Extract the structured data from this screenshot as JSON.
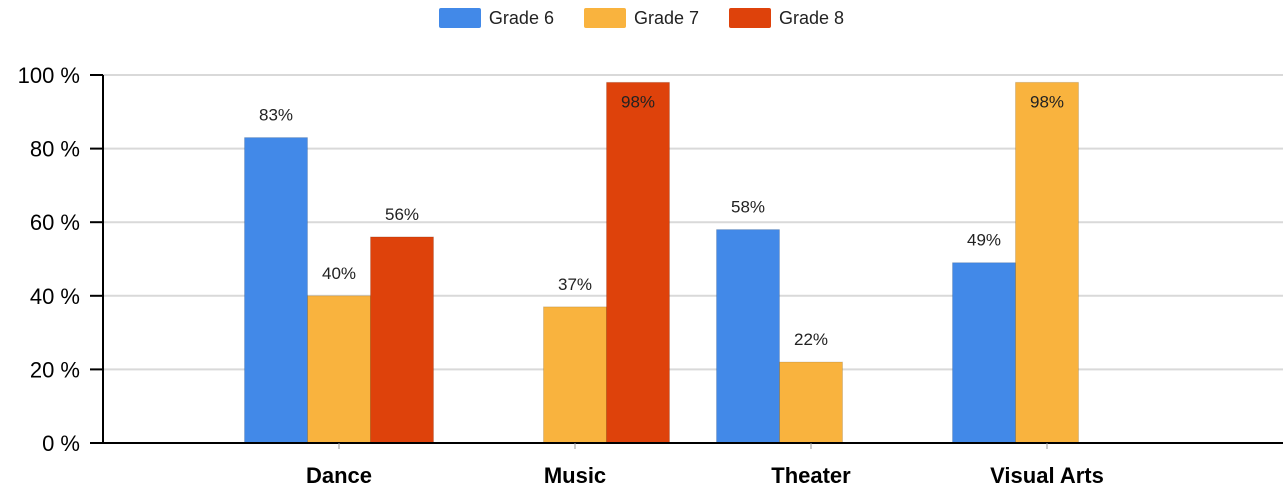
{
  "chart_data": {
    "type": "bar",
    "categories": [
      "Dance",
      "Music",
      "Theater",
      "Visual Arts"
    ],
    "series": [
      {
        "name": "Grade 6",
        "color": "#4289E8",
        "values": [
          83,
          null,
          58,
          49
        ]
      },
      {
        "name": "Grade 7",
        "color": "#F9B33E",
        "values": [
          40,
          37,
          22,
          98
        ]
      },
      {
        "name": "Grade 8",
        "color": "#DE420B",
        "values": [
          56,
          98,
          null,
          null
        ]
      }
    ],
    "data_labels": [
      [
        "83%",
        null,
        "58%",
        "49%"
      ],
      [
        "40%",
        "37%",
        "22%",
        "98%"
      ],
      [
        "56%",
        "98%",
        null,
        null
      ]
    ],
    "y_tick_labels": [
      "0 %",
      "20 %",
      "40 %",
      "60 %",
      "80 %",
      "100 %"
    ],
    "ylim": [
      0,
      100
    ],
    "grid": true,
    "legend": "top-center",
    "title": "",
    "xlabel": "",
    "ylabel": ""
  }
}
